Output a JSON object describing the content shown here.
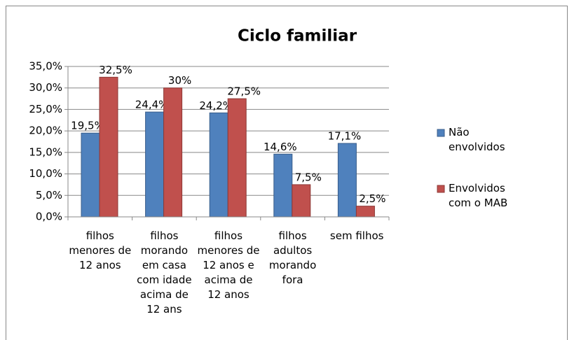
{
  "chart_data": {
    "type": "bar",
    "title": "Ciclo familiar",
    "categories": [
      "filhos menores de 12 anos",
      "filhos morando em casa com idade acima de 12 ans",
      "filhos menores de 12 anos e acima de 12 anos",
      "filhos adultos morando fora",
      "sem filhos"
    ],
    "series": [
      {
        "name": "Não envolvidos",
        "color": "#4f81bd",
        "values": [
          19.5,
          24.4,
          24.2,
          14.6,
          17.1
        ],
        "value_labels": [
          "19,5%",
          "24,4%",
          "24,2%",
          "14,6%",
          "17,1%"
        ]
      },
      {
        "name": "Envolvidos com o MAB",
        "color": "#c0504d",
        "values": [
          32.5,
          30,
          27.5,
          7.5,
          2.5
        ],
        "value_labels": [
          "32,5%",
          "30%",
          "27,5%",
          "7,5%",
          "2,5%"
        ]
      }
    ],
    "ylim": [
      0,
      35
    ],
    "yticks": [
      {
        "value": 0,
        "label": "0,0%"
      },
      {
        "value": 5,
        "label": "5,0%"
      },
      {
        "value": 10,
        "label": "10,0%"
      },
      {
        "value": 15,
        "label": "15,0%"
      },
      {
        "value": 20,
        "label": "20,0%"
      },
      {
        "value": 25,
        "label": "25,0%"
      },
      {
        "value": 30,
        "label": "30,0%"
      },
      {
        "value": 35,
        "label": "35,0%"
      }
    ],
    "grid": true,
    "legend": "right"
  }
}
